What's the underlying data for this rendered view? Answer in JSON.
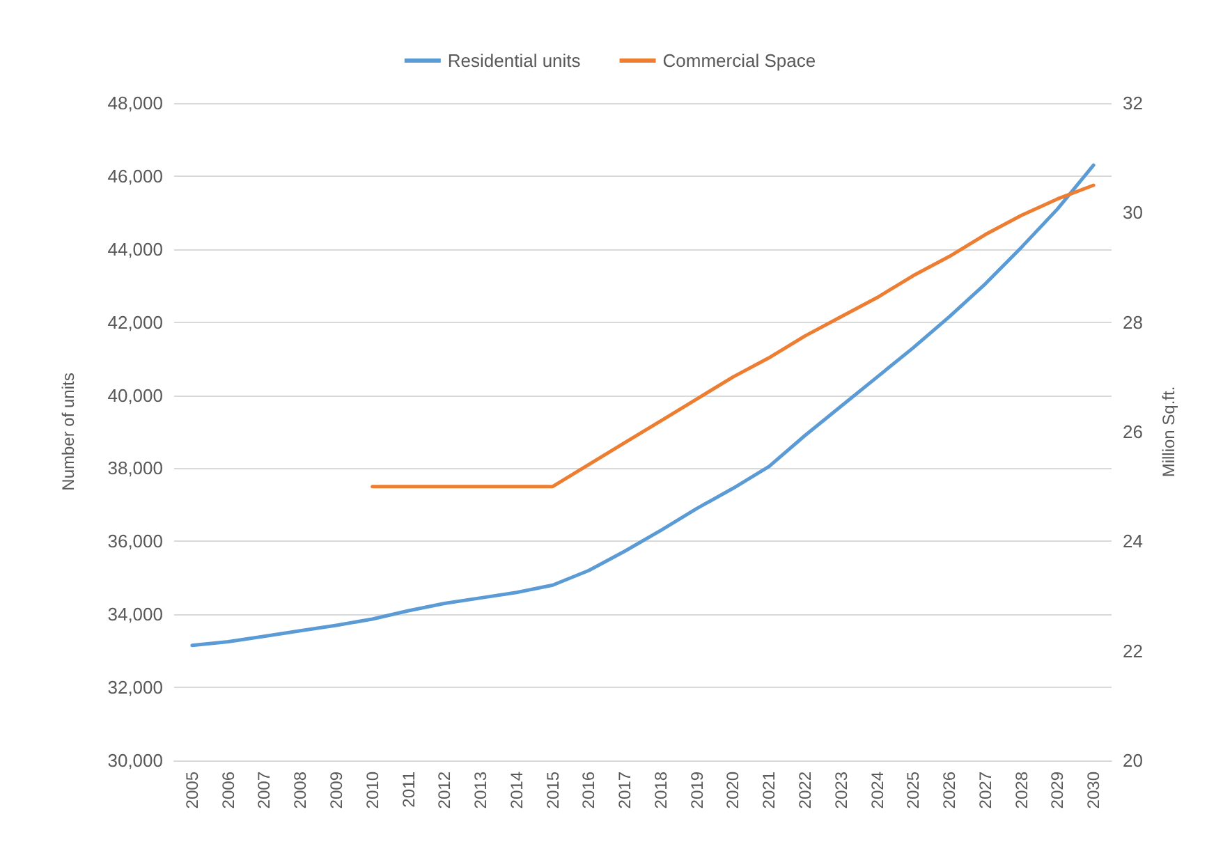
{
  "chart_data": {
    "type": "line",
    "categories": [
      "2005",
      "2006",
      "2007",
      "2008",
      "2009",
      "2010",
      "2011",
      "2012",
      "2013",
      "2014",
      "2015",
      "2016",
      "2017",
      "2018",
      "2019",
      "2020",
      "2021",
      "2022",
      "2023",
      "2024",
      "2025",
      "2026",
      "2027",
      "2028",
      "2029",
      "2030"
    ],
    "ylabel": "Number of units",
    "y2label": "Million Sq.ft.",
    "series": [
      {
        "name": "Residential units",
        "color": "#5b9bd5",
        "values": [
          33150,
          33250,
          33400,
          33550,
          33700,
          33870,
          34100,
          34300,
          34450,
          34600,
          34800,
          35200,
          35730,
          36300,
          36900,
          37450,
          38050,
          38900,
          39700,
          40500,
          41300,
          42150,
          43050,
          44050,
          45100,
          46300
        ]
      },
      {
        "name": "Commercial Space",
        "color": "#ed7d31",
        "axis": "y2",
        "values": [
          null,
          null,
          null,
          null,
          null,
          25.0,
          25.0,
          25.0,
          25.0,
          25.0,
          25.0,
          25.4,
          25.8,
          26.2,
          26.6,
          27.0,
          27.35,
          27.75,
          28.1,
          28.45,
          28.85,
          29.2,
          29.6,
          29.95,
          30.25,
          30.5
        ]
      }
    ],
    "ylim": [
      30000,
      48000
    ],
    "yticks": [
      {
        "value": 30000,
        "label": "30,000"
      },
      {
        "value": 32000,
        "label": "32,000"
      },
      {
        "value": 34000,
        "label": "34,000"
      },
      {
        "value": 36000,
        "label": "36,000"
      },
      {
        "value": 38000,
        "label": "38,000"
      },
      {
        "value": 40000,
        "label": "40,000"
      },
      {
        "value": 42000,
        "label": "42,000"
      },
      {
        "value": 44000,
        "label": "44,000"
      },
      {
        "value": 46000,
        "label": "46,000"
      },
      {
        "value": 48000,
        "label": "48,000"
      }
    ],
    "y2lim": [
      20,
      32
    ],
    "y2ticks": [
      20,
      22,
      24,
      26,
      28,
      30,
      32
    ],
    "grid": "y",
    "legend": "top",
    "marker": "none",
    "line_style": "solid"
  }
}
